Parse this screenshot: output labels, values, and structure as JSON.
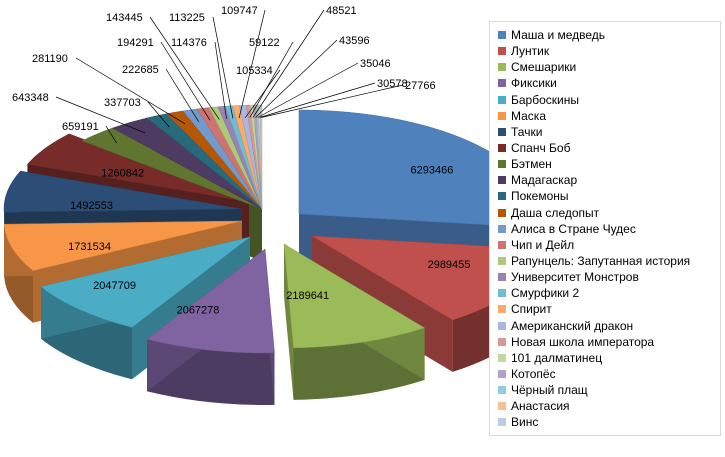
{
  "chart_data": {
    "type": "pie",
    "title": "",
    "legend_position": "right",
    "slices": [
      {
        "name": "Маша и медведь",
        "value": 6293466,
        "color": "#4F81BD"
      },
      {
        "name": "Лунтик",
        "value": 2989455,
        "color": "#C0504D"
      },
      {
        "name": "Смешарики",
        "value": 2189641,
        "color": "#9BBB59"
      },
      {
        "name": "Фиксики",
        "value": 2067278,
        "color": "#8064A2"
      },
      {
        "name": "Барбоскины",
        "value": 2047709,
        "color": "#4BACC6"
      },
      {
        "name": "Маска",
        "value": 1731534,
        "color": "#F79646"
      },
      {
        "name": "Тачки",
        "value": 1492553,
        "color": "#2C4D75"
      },
      {
        "name": "Спанч Боб",
        "value": 1260842,
        "color": "#772C2A"
      },
      {
        "name": "Бэтмен",
        "value": 659191,
        "color": "#5F7530"
      },
      {
        "name": "Мадагаскар",
        "value": 643348,
        "color": "#4D3B62"
      },
      {
        "name": "Покемоны",
        "value": 337703,
        "color": "#276A7C"
      },
      {
        "name": "Даша следопыт",
        "value": 281190,
        "color": "#B65708"
      },
      {
        "name": "Алиса в Стране Чудес",
        "value": 222685,
        "color": "#729ACA"
      },
      {
        "name": "Чип и Дейл",
        "value": 194291,
        "color": "#CD7371"
      },
      {
        "name": "Рапунцель: Запутанная история",
        "value": 143445,
        "color": "#AFC97A"
      },
      {
        "name": "Университет Монстров",
        "value": 114376,
        "color": "#9983B5"
      },
      {
        "name": "Смурфики 2",
        "value": 113225,
        "color": "#6FBDD1"
      },
      {
        "name": "Спирит",
        "value": 109747,
        "color": "#F9AB6B"
      },
      {
        "name": "Американский дракон",
        "value": 105334,
        "color": "#A7B9E3"
      },
      {
        "name": "Новая школа императора",
        "value": 59122,
        "color": "#D99795"
      },
      {
        "name": "101 далматинец",
        "value": 48521,
        "color": "#C3D69B"
      },
      {
        "name": "Котопёс",
        "value": 43596,
        "color": "#B3A2C7"
      },
      {
        "name": "Чёрный плащ",
        "value": 35046,
        "color": "#93CDDD"
      },
      {
        "name": "Анастасия",
        "value": 30578,
        "color": "#FAC090"
      },
      {
        "name": "Винс",
        "value": 27766,
        "color": "#B9CDE5"
      }
    ]
  }
}
